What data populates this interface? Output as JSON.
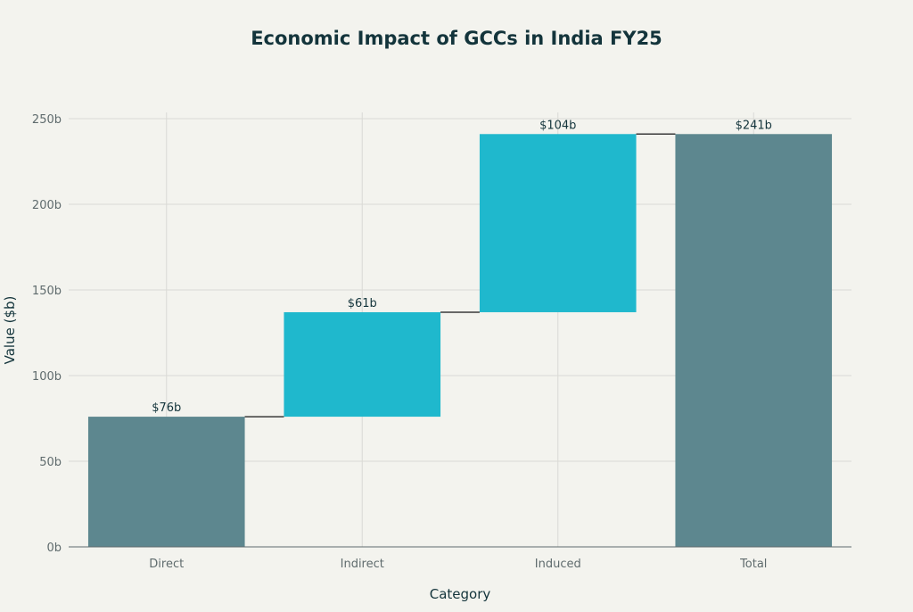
{
  "chart_data": {
    "type": "bar",
    "subtype": "waterfall",
    "title": "Economic Impact of GCCs in India FY25",
    "xlabel": "Category",
    "ylabel": "Value ($b)",
    "categories": [
      "Direct",
      "Indirect",
      "Induced",
      "Total"
    ],
    "values": [
      76,
      61,
      104,
      241
    ],
    "measure": [
      "absolute",
      "relative",
      "relative",
      "total"
    ],
    "data_labels": [
      "$76b",
      "$61b",
      "$104b",
      "$241b"
    ],
    "ylim": [
      0,
      250
    ],
    "yticks": [
      0,
      50,
      100,
      150,
      200,
      250
    ],
    "ytick_labels": [
      "0b",
      "50b",
      "100b",
      "150b",
      "200b",
      "250b"
    ],
    "grid": true,
    "legend": "none",
    "colors": {
      "total": "#5D878F",
      "increase": "#1FB8CD",
      "connector": "#3a3a3a",
      "grid": "#DADAD5",
      "text": "#13343B"
    }
  }
}
